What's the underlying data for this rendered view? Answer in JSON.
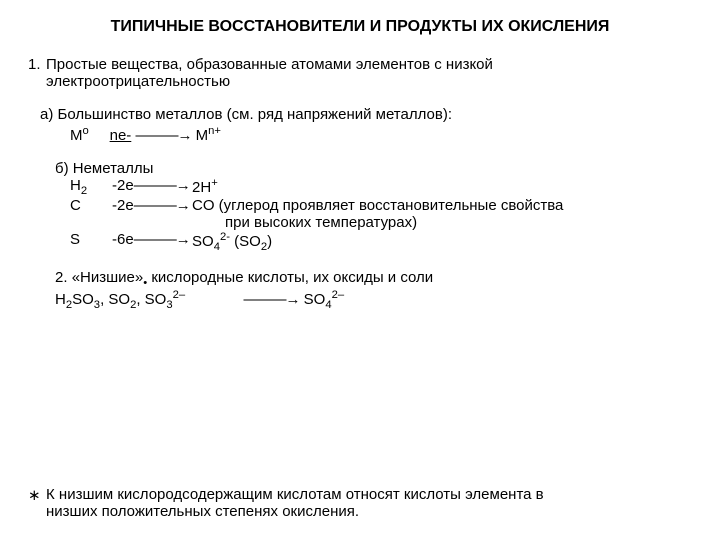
{
  "title": "ТИПИЧНЫЕ ВОССТАНОВИТЕЛИ И ПРОДУКТЫ ИХ ОКИСЛЕНИЯ",
  "section1": {
    "num": "1.",
    "line1": "Простые вещества, образованные атомами элементов с низкой",
    "line2": "электроотрицательностью"
  },
  "part_a": {
    "label": "а) Большинство металлов (см. ряд напряжений металлов):",
    "sym": "М",
    "sup": "o",
    "eloss": "ne-",
    "arrow": "———→",
    "prod": "М",
    "prodSup": "n+"
  },
  "part_b": {
    "label": "б) Неметаллы",
    "rows": [
      {
        "sym": "H",
        "sub": "2",
        "e": "-2e",
        "arr": "———→",
        "prod": "2H",
        "psup": "+",
        "rest": ""
      },
      {
        "sym": "C",
        "sub": "",
        "e": "-2e",
        "arr": "———→",
        "prod": "CO (углерод проявляет восстановительные свойства",
        "psup": "",
        "rest": ""
      }
    ],
    "note": "при высоких   температурах)",
    "row3": {
      "sym": "S",
      "e": "-6e",
      "arr": "———→",
      "prod": "SO",
      "psub": "4",
      "psup": "2-",
      "rest": " (SO",
      "rsub": "2",
      "tail": ")"
    }
  },
  "section2": {
    "num": "2.",
    "lead": "«Низшие»",
    "bullet": "•",
    "text": " кислородные кислоты, их оксиды и соли",
    "line2_a": "H",
    "line2_b": "SO",
    "line2_c": ", SO",
    "line2_d": ", SO",
    "arrow": "———→",
    "prod": " SO"
  },
  "footnote": {
    "bullet": "∗",
    "line1": "К низшим кислородсодержащим кислотам относят кислоты элемента в",
    "line2": "низших положительных степенях окисления."
  },
  "colors": {
    "text": "#000000",
    "bg": "#ffffff"
  }
}
